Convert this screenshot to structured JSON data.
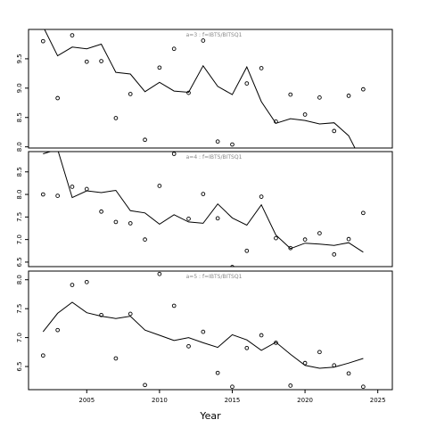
{
  "chart_data": [
    {
      "type": "scatter",
      "title": "a=3  :  f=IBTS/BITSQ1",
      "xlabel": "",
      "ylabel": "",
      "xlim": [
        2001,
        2026
      ],
      "ylim": [
        7.98,
        10.0
      ],
      "yticks": [
        8.0,
        8.5,
        9.0,
        9.5
      ],
      "ytick_labels": [
        "8.0",
        "8.5",
        "9.0",
        "9.5"
      ],
      "series": [
        {
          "kind": "points",
          "x": [
            2002,
            2003,
            2004,
            2005,
            2006,
            2007,
            2008,
            2009,
            2010,
            2011,
            2012,
            2013,
            2014,
            2015,
            2016,
            2017,
            2018,
            2019,
            2020,
            2021,
            2022,
            2023,
            2024
          ],
          "y": [
            9.8,
            8.83,
            9.9,
            9.45,
            9.46,
            8.49,
            8.9,
            8.12,
            9.35,
            9.67,
            8.92,
            9.81,
            8.09,
            8.04,
            9.08,
            9.34,
            8.43,
            8.89,
            8.55,
            8.84,
            8.27,
            8.87,
            8.98
          ]
        },
        {
          "kind": "line",
          "x": [
            2002,
            2003,
            2004,
            2005,
            2006,
            2007,
            2008,
            2009,
            2010,
            2011,
            2012,
            2013,
            2014,
            2015,
            2016,
            2017,
            2018,
            2019,
            2020,
            2021,
            2022,
            2023,
            2024
          ],
          "y": [
            10.05,
            9.55,
            9.7,
            9.67,
            9.75,
            9.27,
            9.24,
            8.94,
            9.1,
            8.95,
            8.93,
            9.38,
            9.03,
            8.89,
            9.36,
            8.77,
            8.4,
            8.48,
            8.45,
            8.39,
            8.41,
            8.19,
            7.7
          ]
        }
      ]
    },
    {
      "type": "scatter",
      "title": "a=4  :  f=IBTS/BITSQ1",
      "xlabel": "",
      "ylabel": "",
      "xlim": [
        2001,
        2026
      ],
      "ylim": [
        6.4,
        8.95
      ],
      "yticks": [
        6.5,
        7.0,
        7.5,
        8.0,
        8.5
      ],
      "ytick_labels": [
        "6.5",
        "7.0",
        "7.5",
        "8.0",
        "8.5"
      ],
      "series": [
        {
          "kind": "points",
          "x": [
            2002,
            2003,
            2004,
            2005,
            2006,
            2007,
            2008,
            2009,
            2010,
            2011,
            2012,
            2013,
            2014,
            2015,
            2016,
            2017,
            2018,
            2019,
            2020,
            2021,
            2022,
            2023,
            2024
          ],
          "y": [
            8.0,
            7.97,
            8.17,
            8.12,
            7.62,
            7.39,
            7.36,
            7.0,
            8.19,
            8.9,
            7.46,
            8.01,
            7.47,
            6.39,
            6.75,
            7.95,
            7.03,
            6.81,
            7.0,
            7.14,
            6.67,
            7.01,
            7.59
          ]
        },
        {
          "kind": "line",
          "x": [
            2002,
            2003,
            2004,
            2005,
            2006,
            2007,
            2008,
            2009,
            2010,
            2011,
            2012,
            2013,
            2014,
            2015,
            2016,
            2017,
            2018,
            2019,
            2020,
            2021,
            2022,
            2023,
            2024
          ],
          "y": [
            8.9,
            9.0,
            7.93,
            8.08,
            8.04,
            8.09,
            7.64,
            7.59,
            7.34,
            7.55,
            7.39,
            7.36,
            7.79,
            7.48,
            7.32,
            7.77,
            7.1,
            6.8,
            6.92,
            6.9,
            6.87,
            6.93,
            6.72
          ]
        }
      ]
    },
    {
      "type": "scatter",
      "title": "a=5  :  f=IBTS/BITSQ1",
      "xlabel": "Year",
      "ylabel": "",
      "xlim": [
        2001,
        2026
      ],
      "ylim": [
        6.1,
        8.15
      ],
      "yticks": [
        6.5,
        7.0,
        7.5,
        8.0
      ],
      "ytick_labels": [
        "6.5",
        "7.0",
        "7.5",
        "8.0"
      ],
      "xticks": [
        2005,
        2010,
        2015,
        2020,
        2025
      ],
      "xtick_labels": [
        "2005",
        "2010",
        "2015",
        "2020",
        "2025"
      ],
      "series": [
        {
          "kind": "points",
          "x": [
            2002,
            2003,
            2004,
            2005,
            2006,
            2007,
            2008,
            2009,
            2010,
            2011,
            2012,
            2013,
            2014,
            2015,
            2016,
            2017,
            2018,
            2019,
            2020,
            2021,
            2022,
            2023,
            2024
          ],
          "y": [
            6.69,
            7.13,
            7.91,
            7.96,
            7.39,
            6.64,
            7.41,
            6.18,
            8.1,
            7.55,
            6.85,
            7.1,
            6.39,
            6.15,
            6.82,
            7.04,
            6.91,
            6.17,
            6.56,
            6.75,
            6.52,
            6.38,
            6.15
          ]
        },
        {
          "kind": "line",
          "x": [
            2002,
            2003,
            2004,
            2005,
            2006,
            2007,
            2008,
            2009,
            2010,
            2011,
            2012,
            2013,
            2014,
            2015,
            2016,
            2017,
            2018,
            2019,
            2020,
            2021,
            2022,
            2023,
            2024
          ],
          "y": [
            7.1,
            7.42,
            7.61,
            7.43,
            7.37,
            7.33,
            7.37,
            7.13,
            7.04,
            6.95,
            7.0,
            6.91,
            6.83,
            7.05,
            6.96,
            6.78,
            6.92,
            6.71,
            6.52,
            6.47,
            6.49,
            6.56,
            6.64
          ]
        }
      ]
    }
  ]
}
